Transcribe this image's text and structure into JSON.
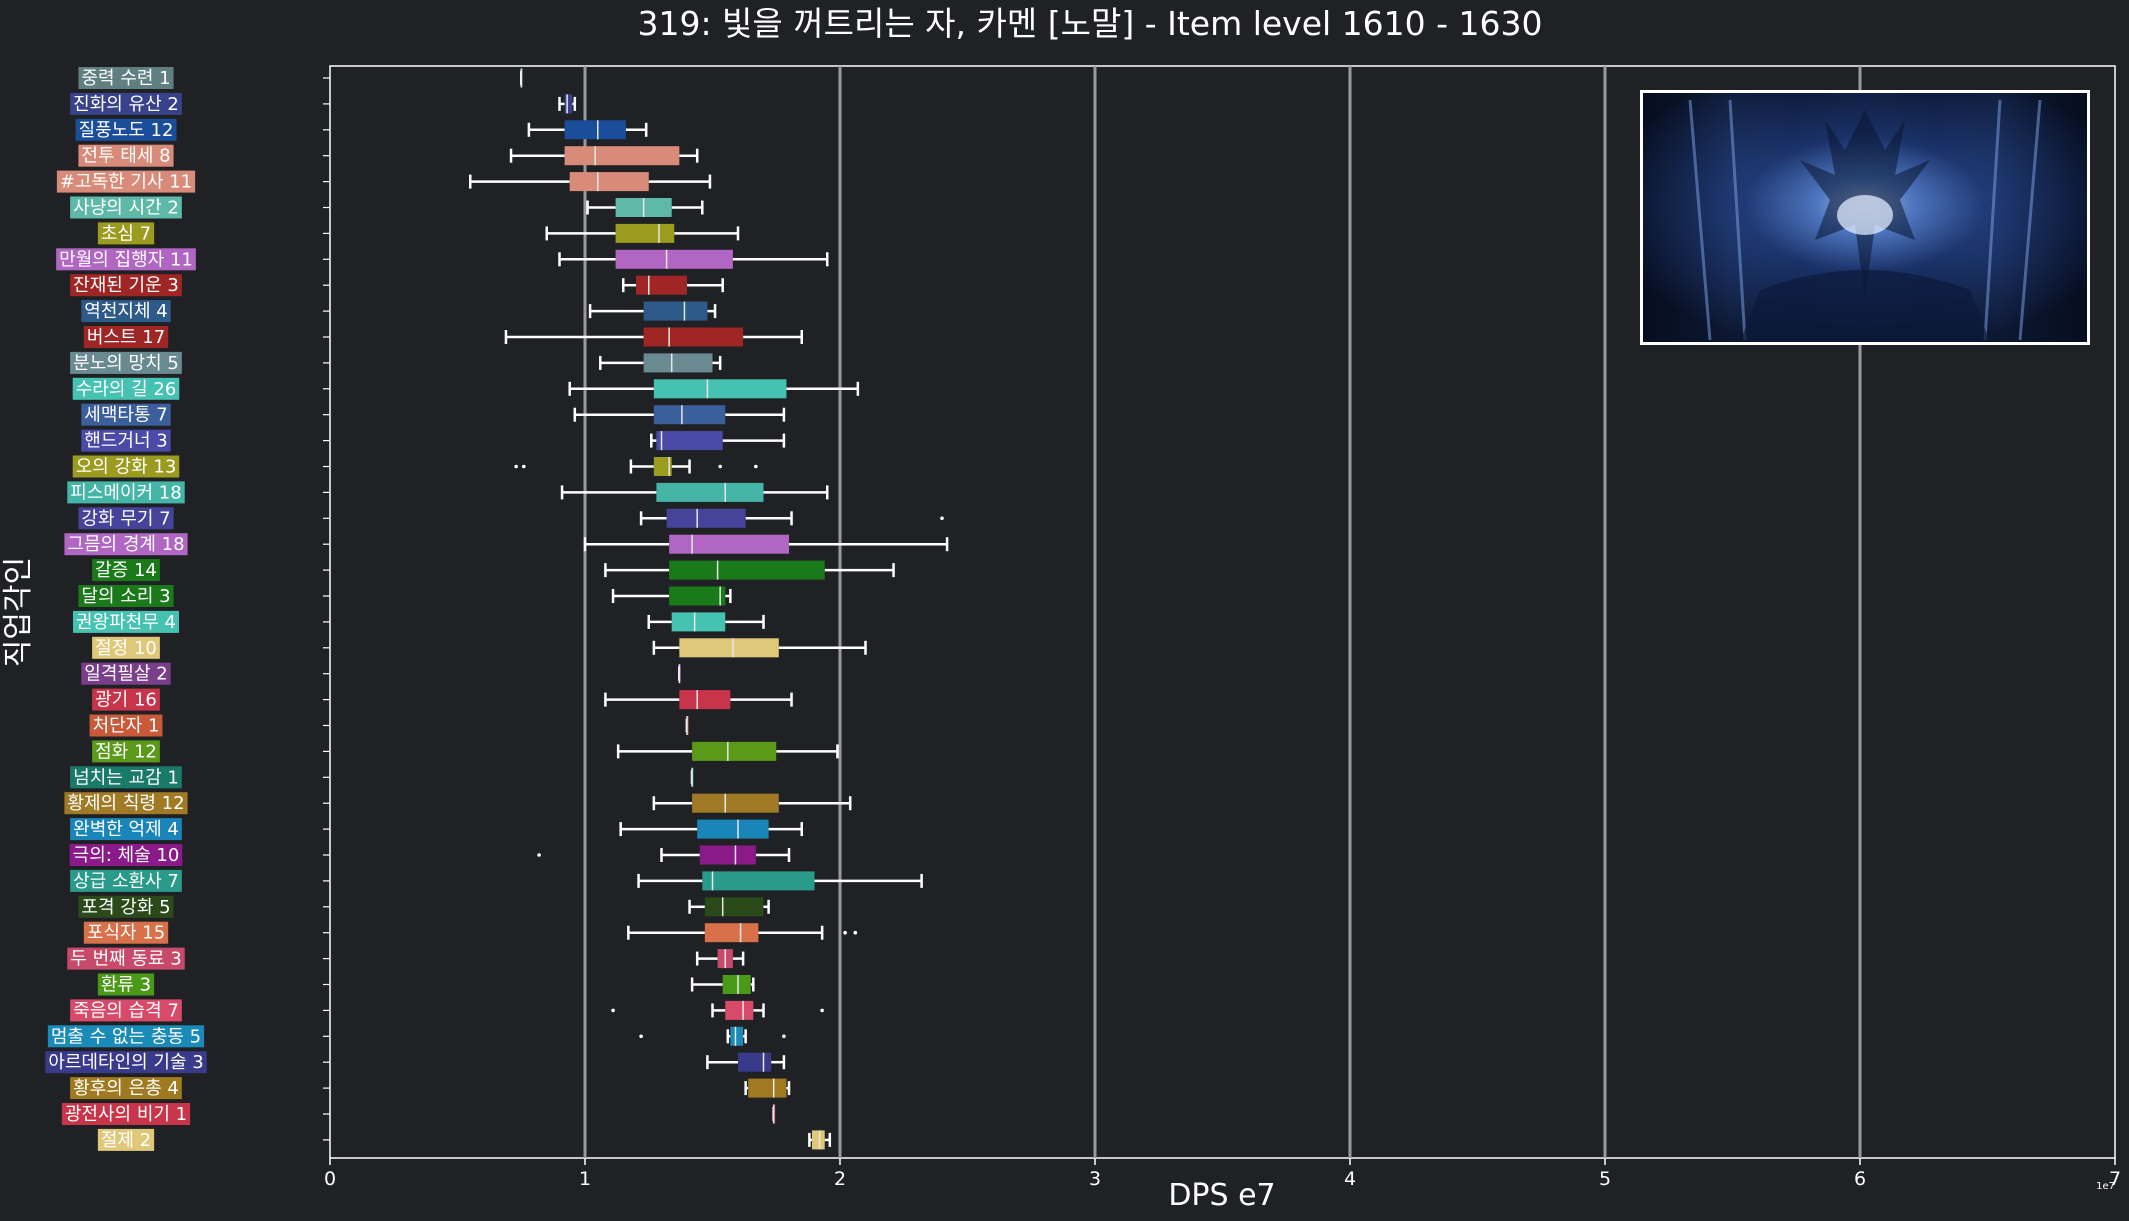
{
  "chart_data": {
    "type": "boxplot",
    "title": "319: 빛을 꺼트리는 자, 카멘 [노말] - Item level 1610 - 1630",
    "xlabel": "DPS e7",
    "ylabel": "직업각인",
    "x_offset_label": "1e7",
    "xlim": [
      0,
      7
    ],
    "xticks": [
      "0",
      "1",
      "2",
      "3",
      "4",
      "5",
      "6",
      "7"
    ],
    "orientation": "horizontal",
    "grid": "vertical",
    "series": [
      {
        "label": "중력 수련 1",
        "color": "#5f7f80",
        "min": 0.75,
        "q1": 0.75,
        "median": 0.75,
        "q3": 0.75,
        "max": 0.75,
        "outliers": []
      },
      {
        "label": "진화의 유산 2",
        "color": "#38428a",
        "min": 0.9,
        "q1": 0.92,
        "median": 0.93,
        "q3": 0.95,
        "max": 0.96,
        "outliers": []
      },
      {
        "label": "질풍노도 12",
        "color": "#1b4e9a",
        "min": 0.78,
        "q1": 0.92,
        "median": 1.05,
        "q3": 1.16,
        "max": 1.24,
        "outliers": []
      },
      {
        "label": "전투 태세 8",
        "color": "#d98b7a",
        "min": 0.71,
        "q1": 0.92,
        "median": 1.04,
        "q3": 1.37,
        "max": 1.44,
        "outliers": []
      },
      {
        "label": "#고독한 기사 11",
        "color": "#d98b7a",
        "min": 0.55,
        "q1": 0.94,
        "median": 1.05,
        "q3": 1.25,
        "max": 1.49,
        "outliers": []
      },
      {
        "label": "사냥의 시간 2",
        "color": "#5fb9a8",
        "min": 1.01,
        "q1": 1.12,
        "median": 1.23,
        "q3": 1.34,
        "max": 1.46,
        "outliers": []
      },
      {
        "label": "초심 7",
        "color": "#9b9b20",
        "min": 0.85,
        "q1": 1.12,
        "median": 1.29,
        "q3": 1.35,
        "max": 1.6,
        "outliers": []
      },
      {
        "label": "만월의 집행자 11",
        "color": "#b066c2",
        "min": 0.9,
        "q1": 1.12,
        "median": 1.32,
        "q3": 1.58,
        "max": 1.95,
        "outliers": []
      },
      {
        "label": "잔재된 기운 3",
        "color": "#a02525",
        "min": 1.15,
        "q1": 1.2,
        "median": 1.25,
        "q3": 1.4,
        "max": 1.54,
        "outliers": []
      },
      {
        "label": "역천지체 4",
        "color": "#2d5a88",
        "min": 1.02,
        "q1": 1.23,
        "median": 1.39,
        "q3": 1.48,
        "max": 1.51,
        "outliers": []
      },
      {
        "label": "버스트 17",
        "color": "#a02525",
        "min": 0.69,
        "q1": 1.23,
        "median": 1.33,
        "q3": 1.62,
        "max": 1.85,
        "outliers": []
      },
      {
        "label": "분노의 망치 5",
        "color": "#6a8a92",
        "min": 1.06,
        "q1": 1.23,
        "median": 1.34,
        "q3": 1.5,
        "max": 1.53,
        "outliers": []
      },
      {
        "label": "수라의 길 26",
        "color": "#45c2b2",
        "min": 0.94,
        "q1": 1.27,
        "median": 1.48,
        "q3": 1.79,
        "max": 2.07,
        "outliers": []
      },
      {
        "label": "세맥타통 7",
        "color": "#3a5f9a",
        "min": 0.96,
        "q1": 1.27,
        "median": 1.38,
        "q3": 1.55,
        "max": 1.78,
        "outliers": []
      },
      {
        "label": "핸드거너 3",
        "color": "#4a4aa8",
        "min": 1.26,
        "q1": 1.28,
        "median": 1.3,
        "q3": 1.54,
        "max": 1.78,
        "outliers": []
      },
      {
        "label": "오의 강화 13",
        "color": "#9b9b20",
        "min": 1.18,
        "q1": 1.27,
        "median": 1.33,
        "q3": 1.34,
        "max": 1.41,
        "outliers": [
          0.73,
          0.76,
          1.53,
          1.67
        ]
      },
      {
        "label": "피스메이커 18",
        "color": "#45b5a8",
        "min": 0.91,
        "q1": 1.28,
        "median": 1.55,
        "q3": 1.7,
        "max": 1.95,
        "outliers": []
      },
      {
        "label": "강화 무기 7",
        "color": "#45439a",
        "min": 1.22,
        "q1": 1.32,
        "median": 1.44,
        "q3": 1.63,
        "max": 1.81,
        "outliers": [
          2.4
        ]
      },
      {
        "label": "그믐의 경계 18",
        "color": "#b066c2",
        "min": 1.0,
        "q1": 1.33,
        "median": 1.42,
        "q3": 1.8,
        "max": 2.42,
        "outliers": []
      },
      {
        "label": "갈증 14",
        "color": "#1a7a1a",
        "min": 1.08,
        "q1": 1.33,
        "median": 1.52,
        "q3": 1.94,
        "max": 2.21,
        "outliers": []
      },
      {
        "label": "달의 소리 3",
        "color": "#1a7a1a",
        "min": 1.11,
        "q1": 1.33,
        "median": 1.53,
        "q3": 1.55,
        "max": 1.57,
        "outliers": []
      },
      {
        "label": "권왕파천무 4",
        "color": "#45c2b2",
        "min": 1.25,
        "q1": 1.34,
        "median": 1.43,
        "q3": 1.55,
        "max": 1.7,
        "outliers": []
      },
      {
        "label": "절정 10",
        "color": "#e0c87a",
        "min": 1.27,
        "q1": 1.37,
        "median": 1.58,
        "q3": 1.76,
        "max": 2.1,
        "outliers": []
      },
      {
        "label": "일격필살 2",
        "color": "#7a3f8a",
        "min": 1.37,
        "q1": 1.37,
        "median": 1.37,
        "q3": 1.37,
        "max": 1.37,
        "outliers": []
      },
      {
        "label": "광기 16",
        "color": "#c8344a",
        "min": 1.08,
        "q1": 1.37,
        "median": 1.44,
        "q3": 1.57,
        "max": 1.81,
        "outliers": []
      },
      {
        "label": "처단자 1",
        "color": "#c85a3a",
        "min": 1.4,
        "q1": 1.4,
        "median": 1.4,
        "q3": 1.4,
        "max": 1.4,
        "outliers": []
      },
      {
        "label": "점화 12",
        "color": "#5a9a18",
        "min": 1.13,
        "q1": 1.42,
        "median": 1.56,
        "q3": 1.75,
        "max": 1.99,
        "outliers": []
      },
      {
        "label": "넘치는 교감 1",
        "color": "#1a7a6a",
        "min": 1.42,
        "q1": 1.42,
        "median": 1.42,
        "q3": 1.42,
        "max": 1.42,
        "outliers": []
      },
      {
        "label": "황제의 칙령 12",
        "color": "#a07a25",
        "min": 1.27,
        "q1": 1.42,
        "median": 1.55,
        "q3": 1.76,
        "max": 2.04,
        "outliers": []
      },
      {
        "label": "완벽한 억제 4",
        "color": "#1a85b8",
        "min": 1.14,
        "q1": 1.44,
        "median": 1.6,
        "q3": 1.72,
        "max": 1.85,
        "outliers": []
      },
      {
        "label": "극의: 체술 10",
        "color": "#8a1a8a",
        "min": 1.3,
        "q1": 1.45,
        "median": 1.59,
        "q3": 1.67,
        "max": 1.8,
        "outliers": [
          0.82
        ]
      },
      {
        "label": "상급 소환사 7",
        "color": "#2a9a8a",
        "min": 1.21,
        "q1": 1.46,
        "median": 1.5,
        "q3": 1.9,
        "max": 2.32,
        "outliers": []
      },
      {
        "label": "포격 강화 5",
        "color": "#2a4a1a",
        "min": 1.41,
        "q1": 1.47,
        "median": 1.54,
        "q3": 1.7,
        "max": 1.72,
        "outliers": []
      },
      {
        "label": "포식자 15",
        "color": "#d8704a",
        "min": 1.17,
        "q1": 1.47,
        "median": 1.61,
        "q3": 1.68,
        "max": 1.93,
        "outliers": [
          2.02,
          2.06
        ]
      },
      {
        "label": "두 번째 동료 3",
        "color": "#c84a6a",
        "min": 1.44,
        "q1": 1.52,
        "median": 1.55,
        "q3": 1.58,
        "max": 1.62,
        "outliers": []
      },
      {
        "label": "환류 3",
        "color": "#4a9a18",
        "min": 1.42,
        "q1": 1.54,
        "median": 1.6,
        "q3": 1.65,
        "max": 1.66,
        "outliers": []
      },
      {
        "label": "죽음의 습격 7",
        "color": "#d84a6a",
        "min": 1.5,
        "q1": 1.55,
        "median": 1.62,
        "q3": 1.66,
        "max": 1.7,
        "outliers": [
          1.11,
          1.93
        ]
      },
      {
        "label": "멈출 수 없는 충동 5",
        "color": "#1a8ab8",
        "min": 1.56,
        "q1": 1.57,
        "median": 1.59,
        "q3": 1.62,
        "max": 1.63,
        "outliers": [
          1.22,
          1.78
        ]
      },
      {
        "label": "아르데타인의 기술 3",
        "color": "#3a3a8a",
        "min": 1.48,
        "q1": 1.6,
        "median": 1.7,
        "q3": 1.73,
        "max": 1.78,
        "outliers": []
      },
      {
        "label": "황후의 은총 4",
        "color": "#a07a20",
        "min": 1.63,
        "q1": 1.64,
        "median": 1.74,
        "q3": 1.79,
        "max": 1.8,
        "outliers": []
      },
      {
        "label": "광전사의 비기 1",
        "color": "#c8344a",
        "min": 1.74,
        "q1": 1.74,
        "median": 1.74,
        "q3": 1.74,
        "max": 1.74,
        "outliers": []
      },
      {
        "label": "절제 2",
        "color": "#e0c87a",
        "min": 1.88,
        "q1": 1.89,
        "median": 1.92,
        "q3": 1.94,
        "max": 1.96,
        "outliers": []
      }
    ]
  }
}
